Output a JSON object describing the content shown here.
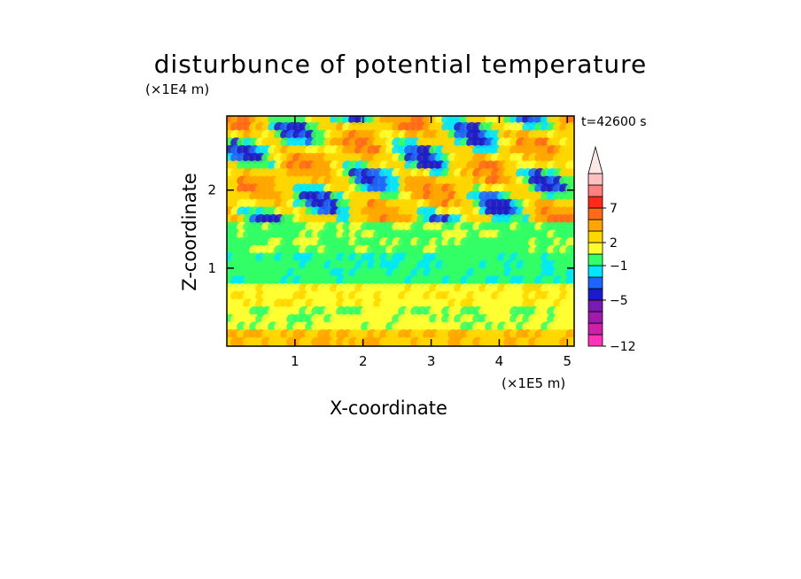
{
  "chart_data": {
    "type": "heatmap",
    "title": "disturbunce of potential temperature",
    "xlabel": "X-coordinate",
    "ylabel": "Z-coordinate",
    "x_unit": "(×1E5 m)",
    "y_unit": "(×1E4 m)",
    "time_label": "t=42600 s",
    "xlim": [
      0,
      5.1
    ],
    "ylim": [
      0,
      2.95
    ],
    "x_ticks": [
      1,
      2,
      3,
      4,
      5
    ],
    "x_tick_labels": [
      "1",
      "2",
      "3",
      "4",
      "5"
    ],
    "y_ticks": [
      1,
      2
    ],
    "y_tick_labels": [
      "1",
      "2"
    ],
    "colorbar": {
      "levels": [
        {
          "color": "#ff33b8"
        },
        {
          "color": "#cc1faa"
        },
        {
          "color": "#a01ab0"
        },
        {
          "color": "#7a1ab0"
        },
        {
          "color": "#1a1acc"
        },
        {
          "color": "#1a66ff"
        },
        {
          "color": "#00e6ff"
        },
        {
          "color": "#33ff66"
        },
        {
          "color": "#ffff33"
        },
        {
          "color": "#ffd700"
        },
        {
          "color": "#ffa500"
        },
        {
          "color": "#ff6a1a"
        },
        {
          "color": "#ff2a1a"
        },
        {
          "color": "#ff8080"
        },
        {
          "color": "#ffc0c0"
        }
      ],
      "tick_labels": [
        "7",
        "2",
        "−1",
        "−5",
        "−12"
      ],
      "extend_max": true
    },
    "description_bands": [
      {
        "z_from": 0.0,
        "z_to": 0.15,
        "color": "#ffd700"
      },
      {
        "z_from": 0.15,
        "z_to": 0.75,
        "color": "#ffff33"
      },
      {
        "z_from": 0.75,
        "z_to": 1.6,
        "color": "#33ff66"
      },
      {
        "z_from": 1.6,
        "z_to": 2.95,
        "color": "#ffd700"
      }
    ]
  }
}
